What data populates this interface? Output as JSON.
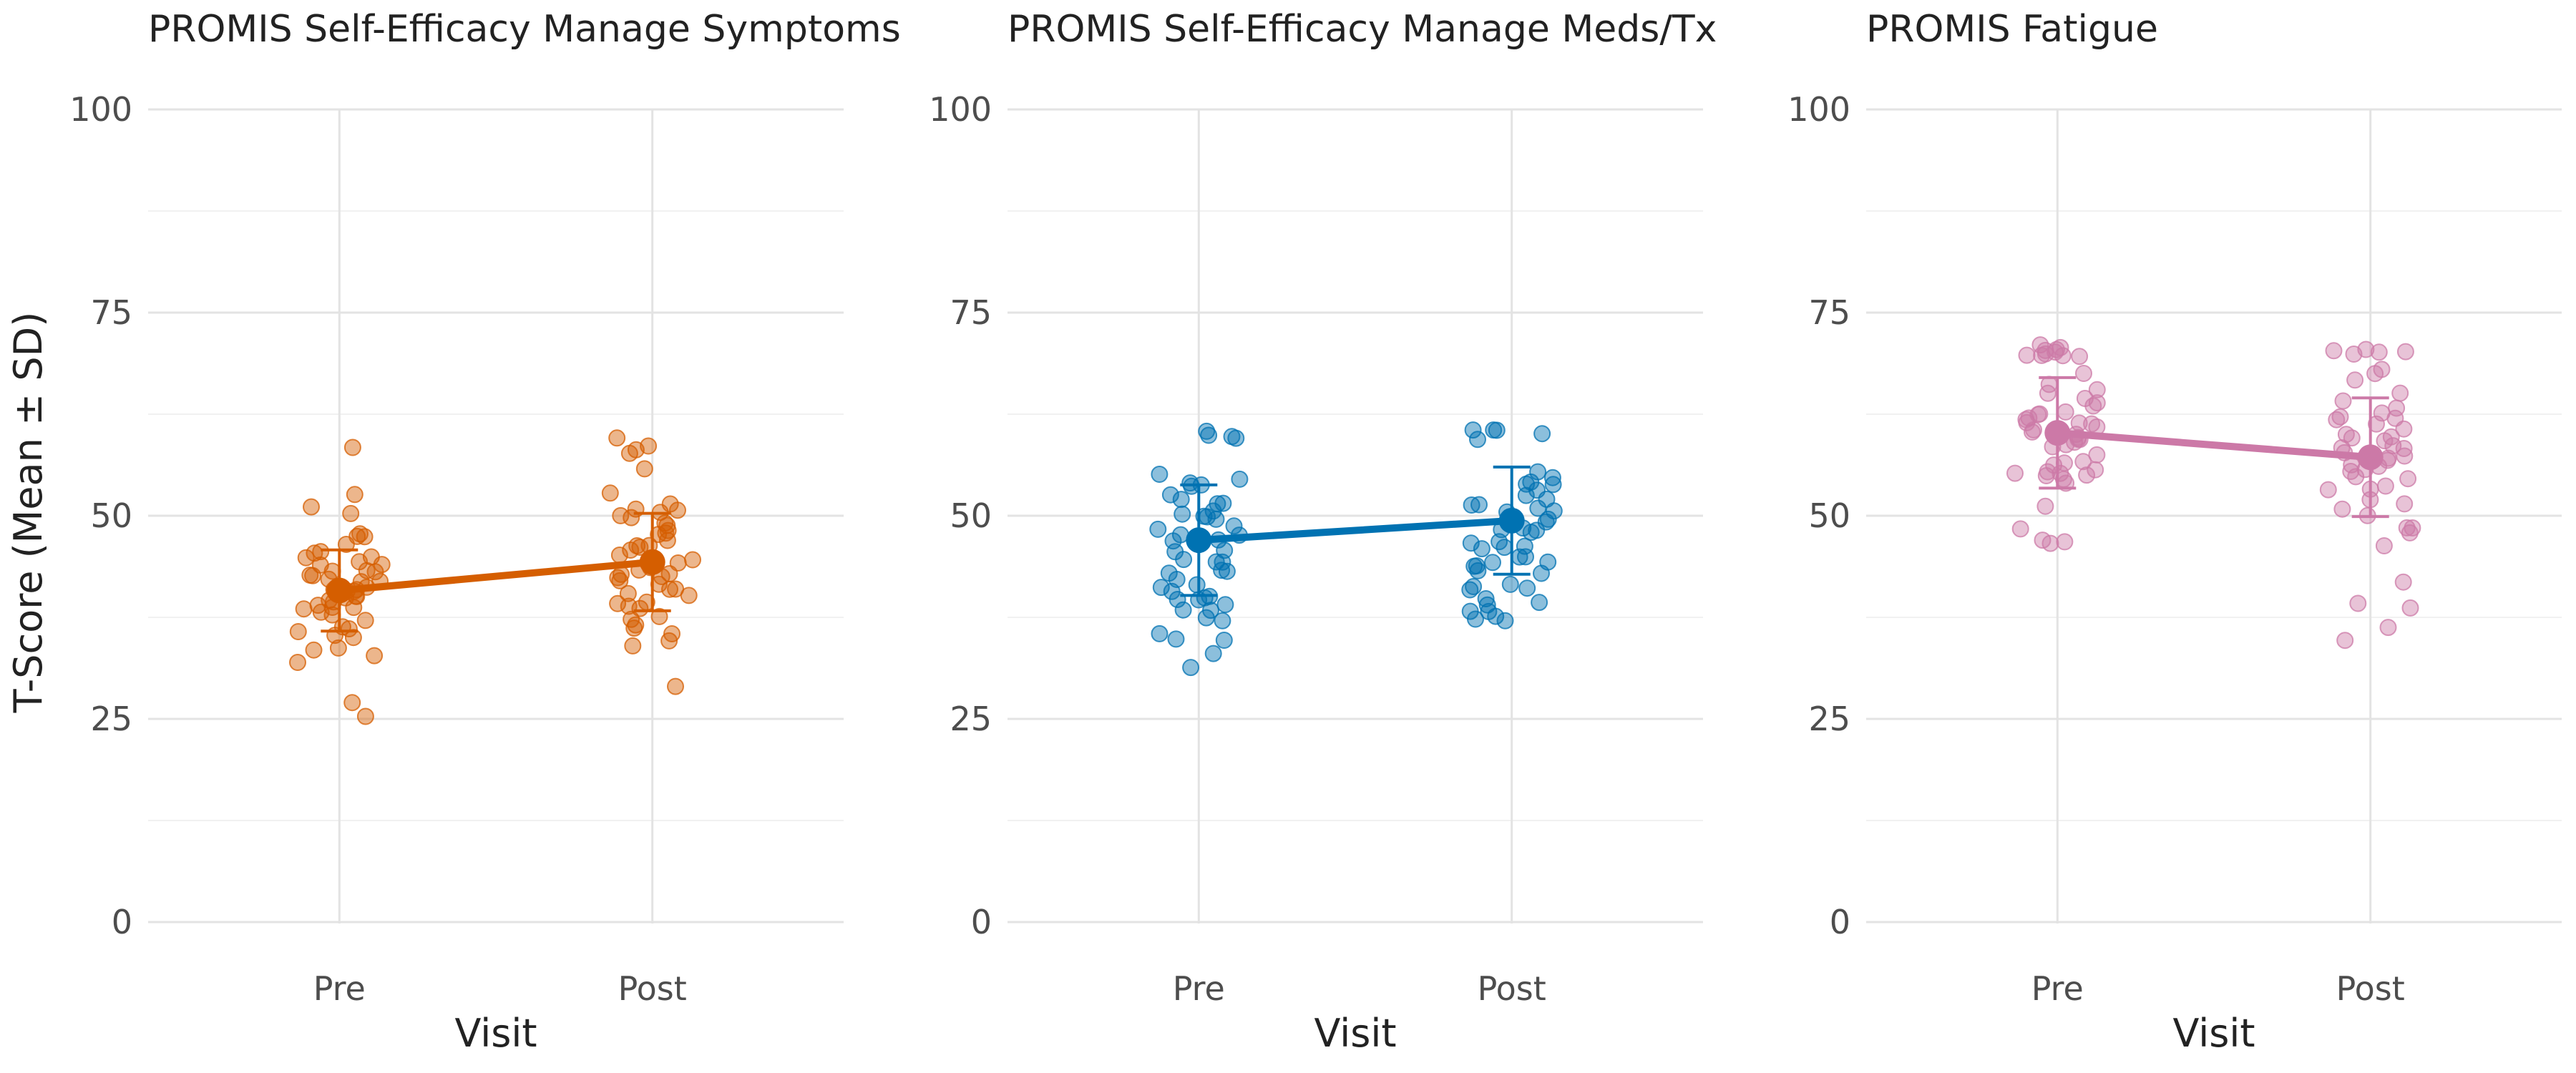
{
  "chart_data": {
    "type": "scatter",
    "y_axis_label": "T-Score (Mean ± SD)",
    "x_axis_label": "Visit",
    "ylim": [
      0,
      100
    ],
    "y_ticks": [
      0,
      25,
      50,
      75,
      100
    ],
    "y_tick_labels": [
      "0",
      "25",
      "50",
      "75",
      "100"
    ],
    "categories": [
      "Pre",
      "Post"
    ],
    "grid": true,
    "legend": "none",
    "panels": [
      {
        "title": "PROMIS Self-Efficacy Manage Symptoms",
        "color": "#D55E00",
        "mean": [
          40.8,
          44.3
        ],
        "sd": [
          5.0,
          6.0
        ],
        "points": [
          [
            58.2,
            50.8,
            52.8,
            51.5,
            47.8,
            47.6,
            47.1,
            46.2,
            45.7,
            45.3,
            44.8,
            44.2,
            43.8,
            43.5,
            43.1,
            42.9,
            42.5,
            42.2,
            41.9,
            41.6,
            41.3,
            41.0,
            40.8,
            40.5,
            40.3,
            40.0,
            39.8,
            39.5,
            39.2,
            38.9,
            38.6,
            38.2,
            37.9,
            37.5,
            37.1,
            36.7,
            36.3,
            35.8,
            35.3,
            34.8,
            34.2,
            33.5,
            32.9,
            32.1,
            26.9,
            25.5,
            45.9,
            44.0,
            42.7,
            41.1,
            40.1,
            39.0
          ],
          [
            59.3,
            58.9,
            58.5,
            58.0,
            55.7,
            52.6,
            51.8,
            51.2,
            50.8,
            50.3,
            49.8,
            49.3,
            48.8,
            48.3,
            47.8,
            47.4,
            46.9,
            46.5,
            46.0,
            45.6,
            45.2,
            44.8,
            44.4,
            44.0,
            43.6,
            43.2,
            42.8,
            42.4,
            42.0,
            41.6,
            41.2,
            40.8,
            40.4,
            40.0,
            39.6,
            39.1,
            38.6,
            38.1,
            37.5,
            36.9,
            36.2,
            35.5,
            34.8,
            33.6,
            28.5,
            50.0,
            46.2,
            43.0,
            41.4,
            39.3
          ]
        ]
      },
      {
        "title": "PROMIS Self-Efficacy Manage Meds/Tx",
        "color": "#0072B2",
        "mean": [
          47.0,
          49.4
        ],
        "sd": [
          6.8,
          6.6
        ],
        "points": [
          [
            60.2,
            60.0,
            59.8,
            59.5,
            55.0,
            54.5,
            54.0,
            53.5,
            53.0,
            52.5,
            52.0,
            51.5,
            51.0,
            50.5,
            50.0,
            49.5,
            49.0,
            48.5,
            48.0,
            47.5,
            47.0,
            46.5,
            46.0,
            45.5,
            45.0,
            44.5,
            44.0,
            43.5,
            43.0,
            42.5,
            42.0,
            41.5,
            41.0,
            40.5,
            40.2,
            40.0,
            39.8,
            39.5,
            39.0,
            38.5,
            38.0,
            37.5,
            37.0,
            36.0,
            35.0,
            34.5,
            33.5,
            31.3,
            47.8,
            46.8,
            53.8,
            49.8
          ],
          [
            60.3,
            60.2,
            60.1,
            60.0,
            59.9,
            55.5,
            55.0,
            54.5,
            54.0,
            53.5,
            53.0,
            52.5,
            52.0,
            51.5,
            51.0,
            50.5,
            50.0,
            49.5,
            49.0,
            48.5,
            48.0,
            47.5,
            47.0,
            46.5,
            46.0,
            45.5,
            45.0,
            44.5,
            44.0,
            43.5,
            43.0,
            42.5,
            42.0,
            41.5,
            41.0,
            40.5,
            40.0,
            39.5,
            39.0,
            38.5,
            38.0,
            37.5,
            37.0,
            36.8,
            48.8,
            49.7,
            50.6,
            43.5,
            44.6,
            47.3
          ]
        ]
      },
      {
        "title": "PROMIS Fatigue",
        "color": "#CC79A7",
        "mean": [
          60.2,
          57.2
        ],
        "sd": [
          6.8,
          7.3
        ],
        "points": [
          [
            70.6,
            70.5,
            70.4,
            70.3,
            70.2,
            70.1,
            70.0,
            69.9,
            69.8,
            69.7,
            67.5,
            66.5,
            65.5,
            65.0,
            64.5,
            64.0,
            63.5,
            63.0,
            62.5,
            62.2,
            62.0,
            61.8,
            61.5,
            61.2,
            61.0,
            60.8,
            60.5,
            60.2,
            60.0,
            59.8,
            59.5,
            59.2,
            59.0,
            58.5,
            58.0,
            57.5,
            57.0,
            56.5,
            56.0,
            55.3,
            55.1,
            55.0,
            54.9,
            54.8,
            54.7,
            54.5,
            53.5,
            51.0,
            48.0,
            47.5,
            47.2,
            47.0
          ],
          [
            70.6,
            70.4,
            70.2,
            70.0,
            69.8,
            68.0,
            67.0,
            66.5,
            64.8,
            64.2,
            63.6,
            63.0,
            62.5,
            62.0,
            61.6,
            61.2,
            60.8,
            60.4,
            60.0,
            59.6,
            59.2,
            58.8,
            58.4,
            58.0,
            57.6,
            57.2,
            56.8,
            56.4,
            56.0,
            55.6,
            55.2,
            54.8,
            54.4,
            54.0,
            53.5,
            53.0,
            52.5,
            51.8,
            51.0,
            50.0,
            49.0,
            48.0,
            47.5,
            46.6,
            42.0,
            39.0,
            38.8,
            36.5,
            34.5,
            57.3
          ]
        ]
      }
    ]
  }
}
